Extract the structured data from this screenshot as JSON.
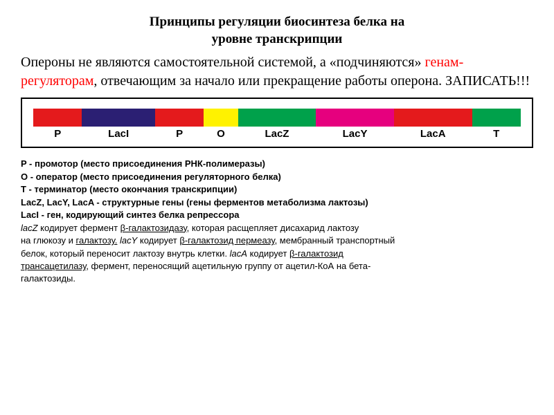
{
  "title_line1": "Принципы регуляции биосинтеза белка на",
  "title_line2": "уровне транскрипции",
  "intro_part1": "Опероны не являются самостоятельной системой, а «подчиняются» ",
  "intro_red": "генам-регуляторам",
  "intro_part2": ", отвечающим за начало или прекращение работы оперона. ЗАПИСАТЬ!!!",
  "diagram": {
    "segments": [
      {
        "label": "P",
        "color": "#e41a1c",
        "width": 10
      },
      {
        "label": "LacI",
        "color": "#2b1f73",
        "width": 15
      },
      {
        "label": "P",
        "color": "#e41a1c",
        "width": 10
      },
      {
        "label": "O",
        "color": "#fff200",
        "width": 7
      },
      {
        "label": "LacZ",
        "color": "#00a14b",
        "width": 16
      },
      {
        "label": "LacY",
        "color": "#e6007e",
        "width": 16
      },
      {
        "label": "LacA",
        "color": "#e41a1c",
        "width": 16
      },
      {
        "label": "T",
        "color": "#00a14b",
        "width": 10
      }
    ],
    "label_fontsize": 15,
    "frame_border": "#000000",
    "bg": "#ffffff"
  },
  "legend": {
    "l1_b": "P - промотор (место присоединения РНК-полимеразы)",
    "l2_b": "O - оператор (место присоединения регуляторного белка)",
    "l3_b": "T - терминатор (место окончания транскрипции)",
    "l4_b": "LacZ, LacY, LacA - структурные гены (гены ферментов метаболизма лактозы)",
    "l5_b": "LacI - ген, кодирующий синтез белка репрессора",
    "l6_a": "lacZ",
    "l6_b": " кодирует фермент ",
    "l6_c": "β-галактозидазу",
    "l6_d": ", которая расщепляет дисахарид лактозу",
    "l7_a": "на глюкозу и ",
    "l7_b": "галактозу.",
    "l7_c": " lacY",
    "l7_d": " кодирует ",
    "l7_e": "β-галактозид пермеазу",
    "l7_f": ", мембранный транспортный",
    "l8": "белок, который переносит лактозу внутрь клетки. ",
    "l8_a": "lacA",
    "l8_b": " кодирует ",
    "l8_c": "β-галактозид",
    "l9_a": "трансацетилазу",
    "l9_b": ", фермент, переносящий ацетильную группу от ацетил-КоА на бета-",
    "l10": "галактозиды."
  }
}
